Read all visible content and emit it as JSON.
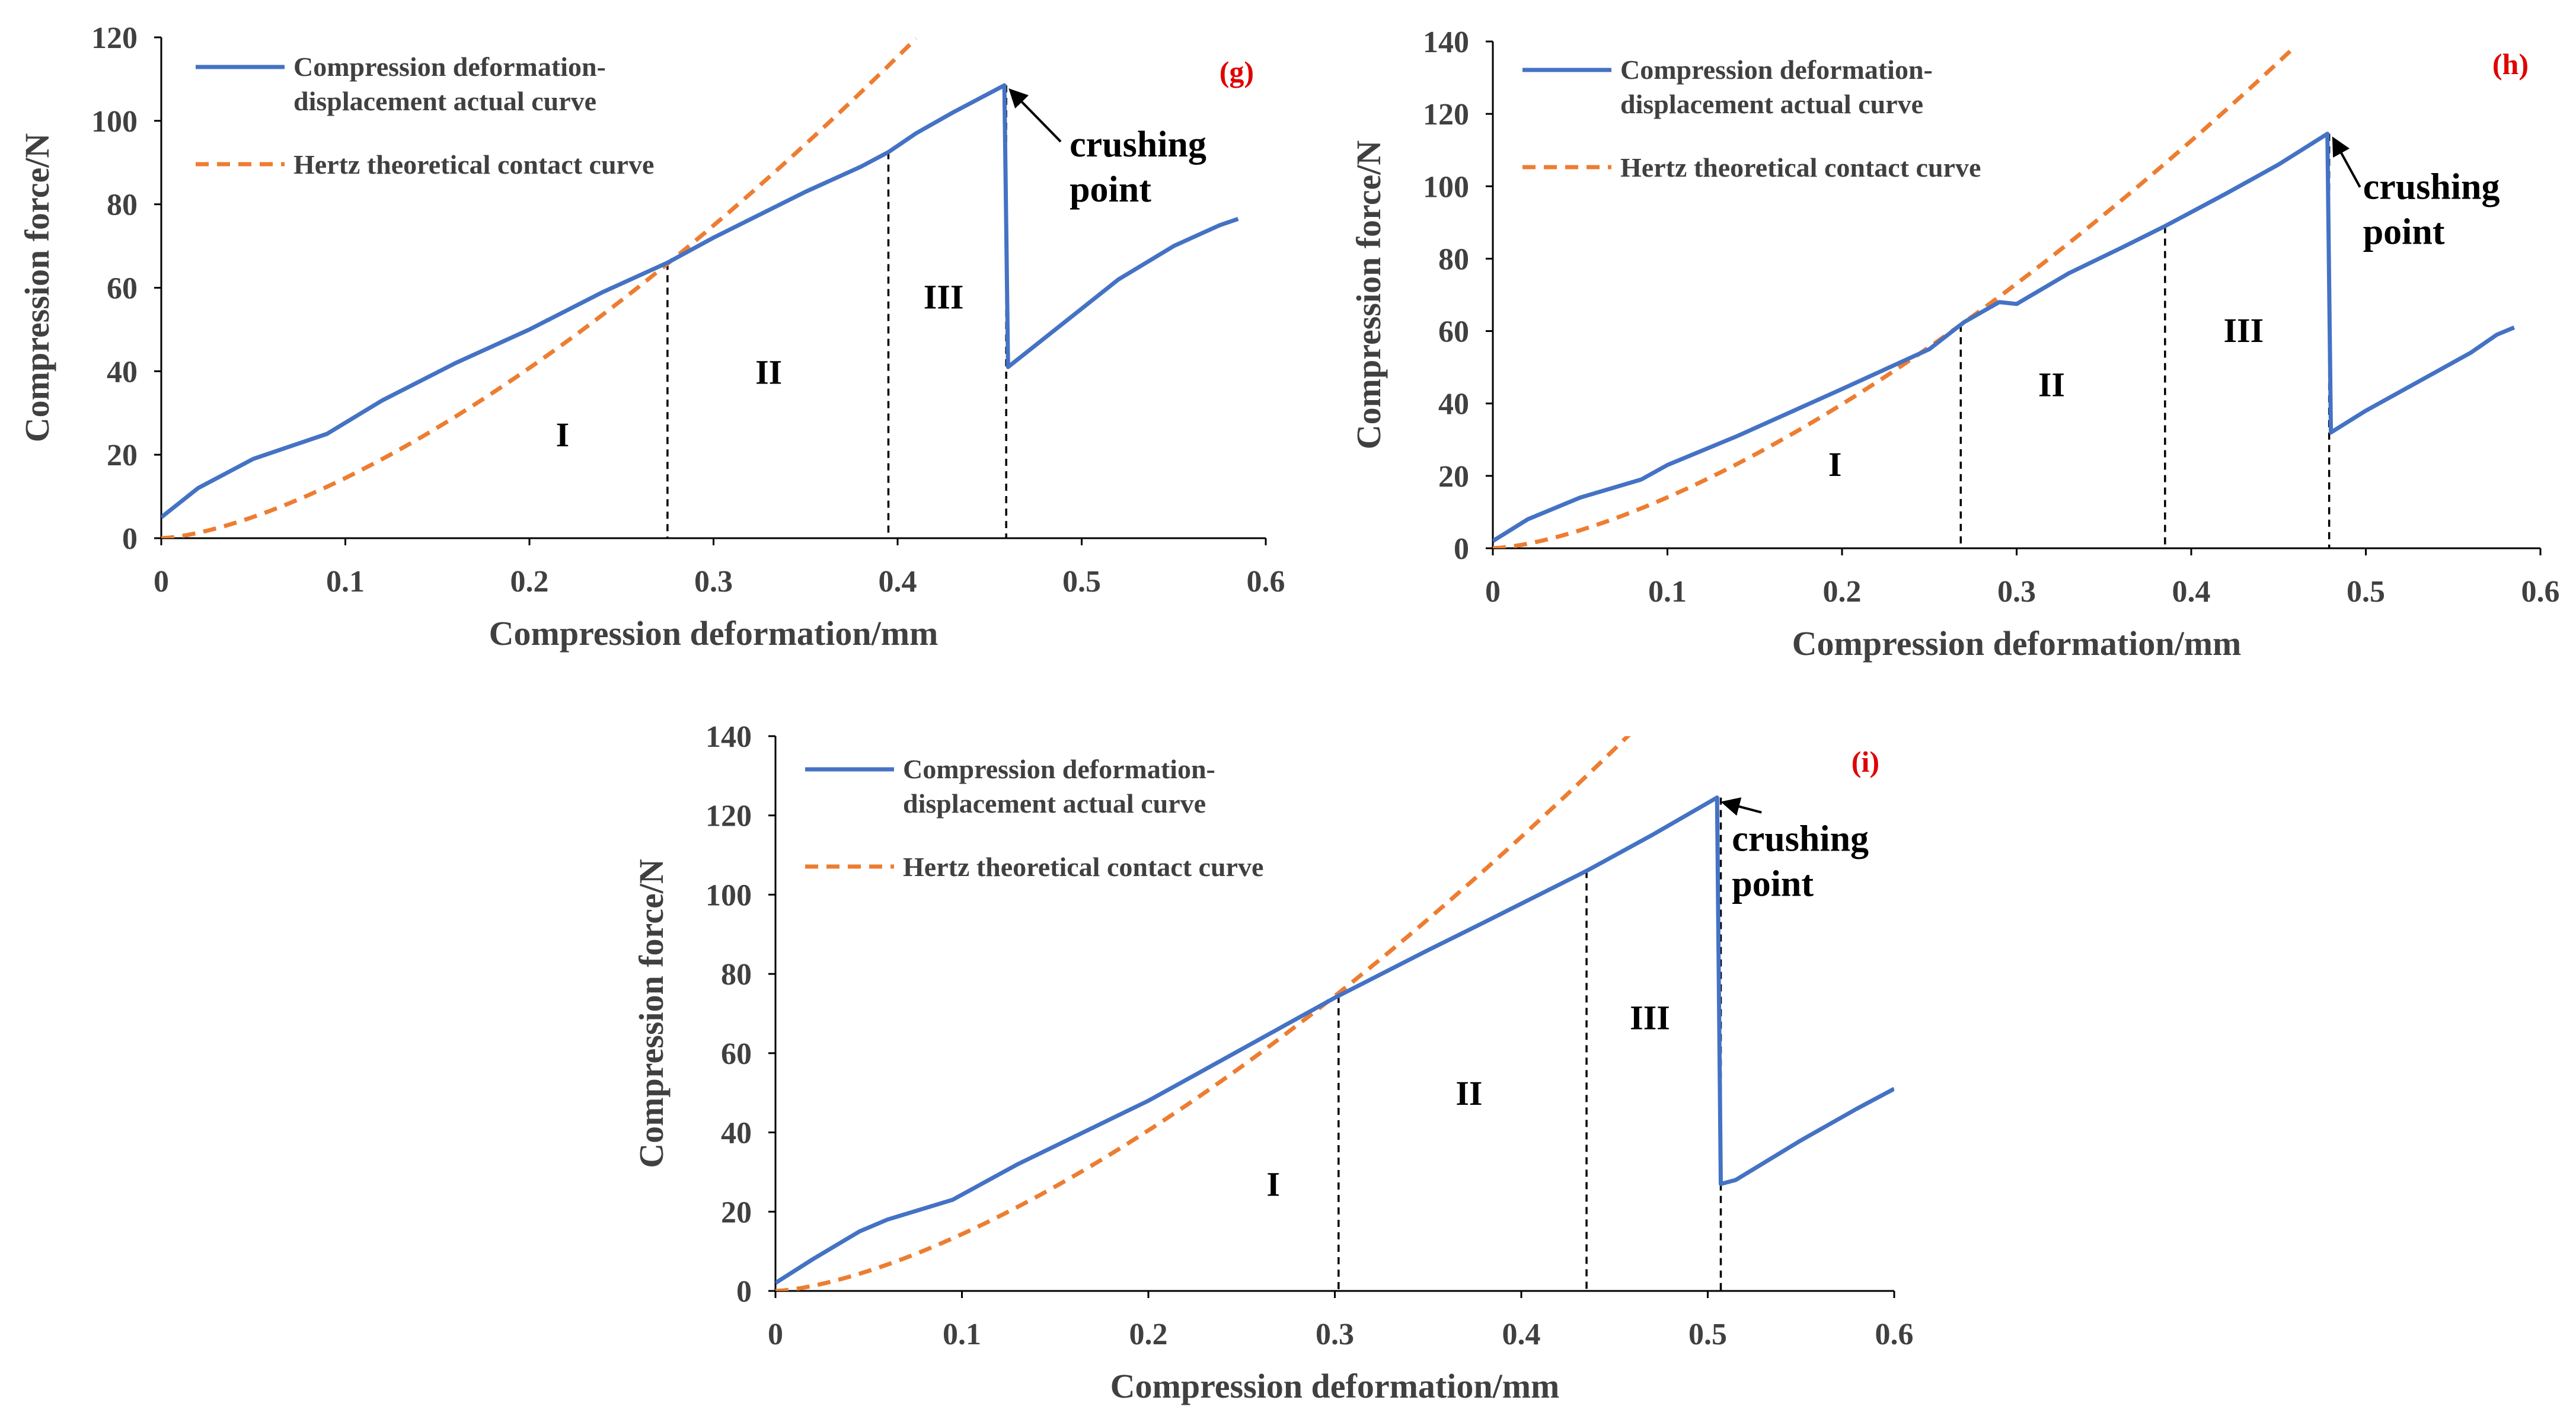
{
  "chart_data": [
    {
      "type": "line",
      "panel_label": "(g)",
      "xlabel": "Compression deformation/mm",
      "ylabel": "Compression force/N",
      "xlim": [
        0,
        0.6
      ],
      "ylim": [
        0,
        120
      ],
      "xticks": [
        0,
        0.1,
        0.2,
        0.3,
        0.4,
        0.5,
        0.6
      ],
      "yticks": [
        0,
        20,
        40,
        60,
        80,
        100,
        120
      ],
      "xtick_labels": [
        "0",
        "0.1",
        "0.2",
        "0.3",
        "0.4",
        "0.5",
        "0.6"
      ],
      "ytick_labels": [
        "0",
        "20",
        "40",
        "60",
        "80",
        "100",
        "120"
      ],
      "legend": [
        "Compression deformation-displacement actual curve",
        "Hertz theoretical contact curve"
      ],
      "series": [
        {
          "name": "Compression deformation-displacement actual curve",
          "style": "solid",
          "color": "#4472c4",
          "x": [
            0,
            0.02,
            0.05,
            0.07,
            0.09,
            0.12,
            0.16,
            0.2,
            0.24,
            0.275,
            0.3,
            0.35,
            0.38,
            0.395,
            0.41,
            0.43,
            0.458,
            0.459,
            0.46,
            0.48,
            0.5,
            0.52,
            0.55,
            0.575,
            0.585
          ],
          "y": [
            5,
            12,
            19,
            22,
            25,
            33,
            42,
            50,
            59,
            66,
            72,
            83,
            89,
            92.5,
            97,
            102,
            108.5,
            75,
            41,
            48,
            55,
            62,
            70,
            75,
            76.5
          ]
        },
        {
          "name": "Hertz theoretical contact curve",
          "style": "dashed",
          "color": "#ed7d31",
          "k": 456,
          "exponent": 1.5,
          "x_end": 0.41
        }
      ],
      "boundaries": [
        0.275,
        0.395,
        0.459
      ],
      "region_labels": [
        {
          "text": "I",
          "x": 0.218,
          "y": 22
        },
        {
          "text": "II",
          "x": 0.33,
          "y": 37
        },
        {
          "text": "III",
          "x": 0.425,
          "y": 55
        }
      ],
      "crush_point": {
        "x": 0.458,
        "y": 108.5
      },
      "annotation_lines": [
        "crushing",
        "point"
      ]
    },
    {
      "type": "line",
      "panel_label": "(h)",
      "xlabel": "Compression deformation/mm",
      "ylabel": "Compression force/N",
      "xlim": [
        0,
        0.6
      ],
      "ylim": [
        0,
        140
      ],
      "xticks": [
        0,
        0.1,
        0.2,
        0.3,
        0.4,
        0.5,
        0.6
      ],
      "yticks": [
        0,
        20,
        40,
        60,
        80,
        100,
        120,
        140
      ],
      "xtick_labels": [
        "0",
        "0.1",
        "0.2",
        "0.3",
        "0.4",
        "0.5",
        "0.6"
      ],
      "ytick_labels": [
        "0",
        "20",
        "40",
        "60",
        "80",
        "100",
        "120",
        "140"
      ],
      "legend": [
        "Compression deformation-displacement actual curve",
        "Hertz theoretical contact curve"
      ],
      "series": [
        {
          "name": "Compression deformation-displacement actual curve",
          "style": "solid",
          "color": "#4472c4",
          "x": [
            0,
            0.02,
            0.05,
            0.085,
            0.1,
            0.14,
            0.2,
            0.25,
            0.27,
            0.29,
            0.3,
            0.33,
            0.36,
            0.385,
            0.42,
            0.45,
            0.478,
            0.479,
            0.48,
            0.5,
            0.53,
            0.56,
            0.575,
            0.585
          ],
          "y": [
            2,
            8,
            14,
            19,
            23,
            31,
            44,
            55,
            62.5,
            68,
            67.5,
            76,
            83,
            89,
            98,
            106,
            114.5,
            72,
            32,
            38,
            46,
            54,
            59,
            61
          ]
        },
        {
          "name": "Hertz theoretical contact curve",
          "style": "dashed",
          "color": "#ed7d31",
          "k": 445,
          "exponent": 1.5,
          "x_end": 0.46
        }
      ],
      "boundaries": [
        0.268,
        0.385,
        0.479
      ],
      "region_labels": [
        {
          "text": "I",
          "x": 0.196,
          "y": 20
        },
        {
          "text": "II",
          "x": 0.32,
          "y": 42
        },
        {
          "text": "III",
          "x": 0.43,
          "y": 57
        }
      ],
      "crush_point": {
        "x": 0.478,
        "y": 114.5
      },
      "annotation_lines": [
        "crushing",
        "point"
      ]
    },
    {
      "type": "line",
      "panel_label": "(i)",
      "xlabel": "Compression deformation/mm",
      "ylabel": "Compression force/N",
      "xlim": [
        0,
        0.6
      ],
      "ylim": [
        0,
        140
      ],
      "xticks": [
        0,
        0.1,
        0.2,
        0.3,
        0.4,
        0.5,
        0.6
      ],
      "yticks": [
        0,
        20,
        40,
        60,
        80,
        100,
        120,
        140
      ],
      "xtick_labels": [
        "0",
        "0.1",
        "0.2",
        "0.3",
        "0.4",
        "0.5",
        "0.6"
      ],
      "ytick_labels": [
        "0",
        "20",
        "40",
        "60",
        "80",
        "100",
        "120",
        "140"
      ],
      "legend": [
        "Compression deformation-displacement actual curve",
        "Hertz theoretical contact curve"
      ],
      "series": [
        {
          "name": "Compression deformation-displacement actual curve",
          "style": "solid",
          "color": "#4472c4",
          "x": [
            0,
            0.02,
            0.045,
            0.06,
            0.095,
            0.13,
            0.2,
            0.25,
            0.3,
            0.35,
            0.38,
            0.435,
            0.47,
            0.505,
            0.506,
            0.507,
            0.515,
            0.55,
            0.58,
            0.6
          ],
          "y": [
            2,
            8,
            15,
            18,
            23,
            32,
            48,
            61,
            74,
            86,
            93,
            106,
            115,
            124.5,
            75,
            27,
            28,
            38,
            46,
            51
          ]
        },
        {
          "name": "Hertz theoretical contact curve",
          "style": "dashed",
          "color": "#ed7d31",
          "k": 453,
          "exponent": 1.5,
          "x_end": 0.458
        }
      ],
      "boundaries": [
        0.302,
        0.435,
        0.507
      ],
      "region_labels": [
        {
          "text": "I",
          "x": 0.267,
          "y": 24
        },
        {
          "text": "II",
          "x": 0.372,
          "y": 47
        },
        {
          "text": "III",
          "x": 0.469,
          "y": 66
        }
      ],
      "crush_point": {
        "x": 0.505,
        "y": 124.5
      },
      "annotation_lines": [
        "crushing",
        "point"
      ]
    }
  ]
}
